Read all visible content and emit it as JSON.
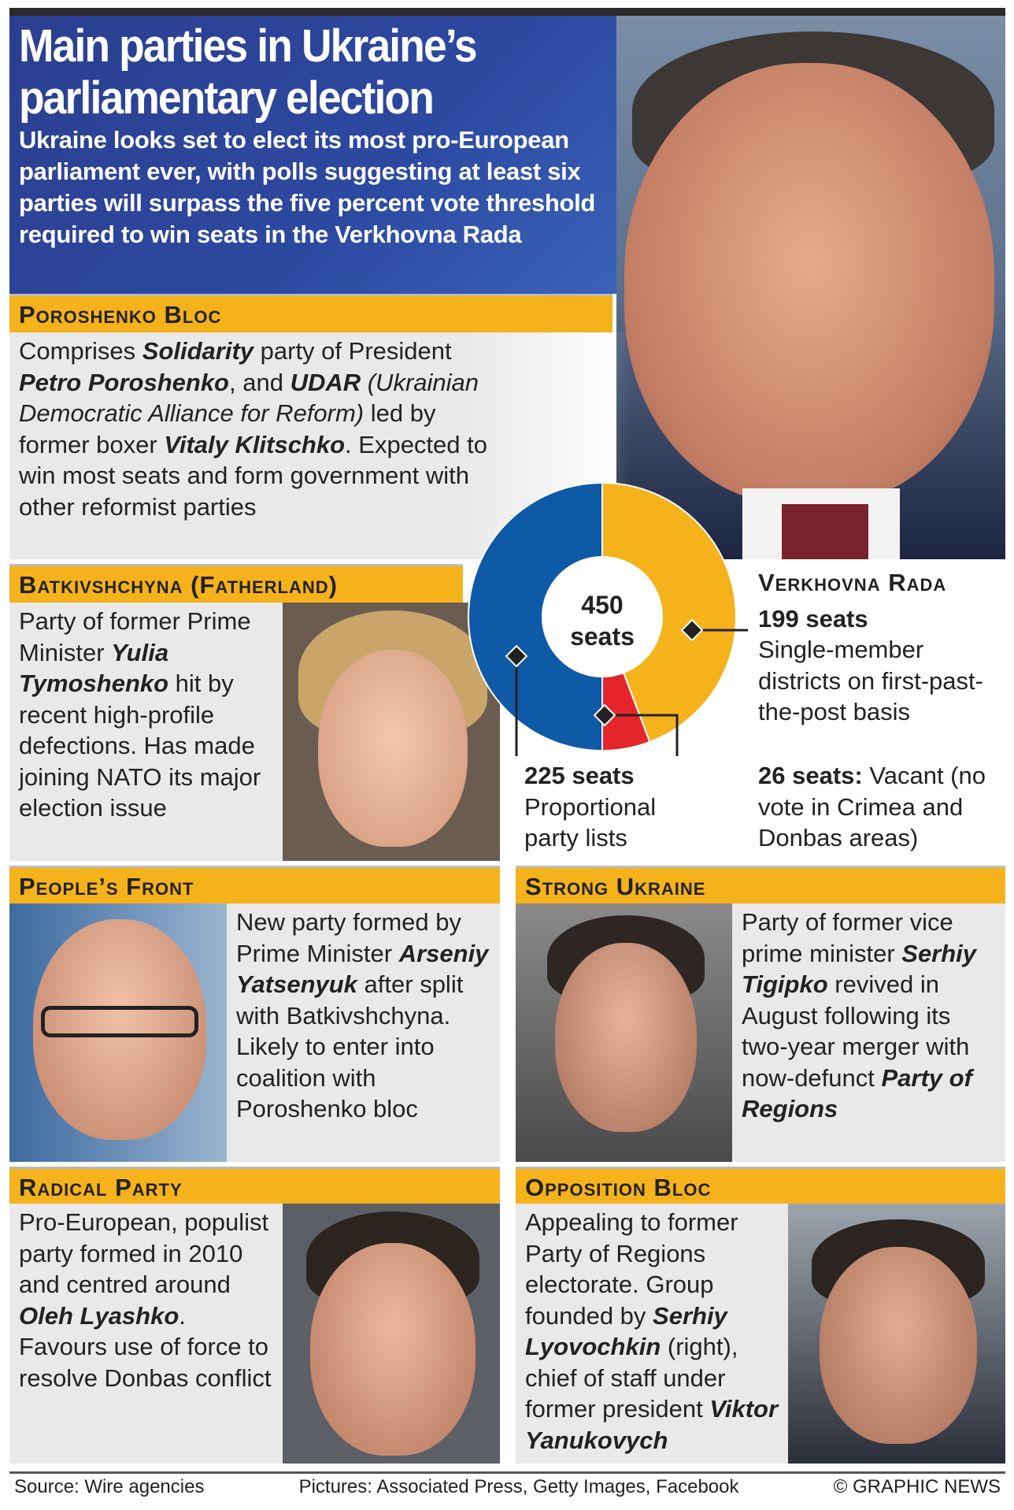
{
  "header": {
    "title_line1": "Main parties in Ukraine’s",
    "title_line2": "parliamentary election",
    "subtitle": [
      {
        "t": "Ukraine looks set to elect its most pro-European parliament ever, with polls suggesting at least six parties will surpass the five percent vote threshold required to win seats in the ",
        "s": ""
      },
      {
        "t": "Verkhovna Rada",
        "s": "i"
      }
    ]
  },
  "parties": {
    "poroshenko": {
      "name": "Poroshenko Bloc",
      "text": [
        {
          "t": "Comprises ",
          "s": ""
        },
        {
          "t": "Solidarity",
          "s": "b"
        },
        {
          "t": " party of President ",
          "s": ""
        },
        {
          "t": "Petro Poroshenko",
          "s": "b"
        },
        {
          "t": ", and ",
          "s": ""
        },
        {
          "t": "UDAR",
          "s": "b"
        },
        {
          "t": " (Ukrainian Democratic Alliance for Reform)",
          "s": "i"
        },
        {
          "t": " led by former boxer ",
          "s": ""
        },
        {
          "t": "Vitaly Klitschko",
          "s": "b"
        },
        {
          "t": ". Expected to win most seats and form government with other reformist parties",
          "s": ""
        }
      ]
    },
    "batkivshchyna": {
      "name": "Batkivshchyna (Fatherland)",
      "text": [
        {
          "t": "Party of former Prime Minister ",
          "s": ""
        },
        {
          "t": "Yulia Tymoshenko",
          "s": "b"
        },
        {
          "t": " hit by recent high-profile defections. Has made joining NATO its major election issue",
          "s": ""
        }
      ]
    },
    "peoples_front": {
      "name": "People’s Front",
      "text": [
        {
          "t": "New party formed by Prime Minister ",
          "s": ""
        },
        {
          "t": "Arseniy Yatsenyuk",
          "s": "b"
        },
        {
          "t": " after split with Batkivshchyna. Likely to enter into coalition with Poroshenko bloc",
          "s": ""
        }
      ]
    },
    "strong_ukraine": {
      "name": "Strong Ukraine",
      "text": [
        {
          "t": "Party of former vice prime minister ",
          "s": ""
        },
        {
          "t": "Serhiy Tigipko",
          "s": "b"
        },
        {
          "t": " revived in August following its two-year merger with now-defunct ",
          "s": ""
        },
        {
          "t": "Party of Regions",
          "s": "b"
        }
      ]
    },
    "radical": {
      "name": "Radical Party",
      "text": [
        {
          "t": "Pro-European, populist party formed in 2010 and centred around ",
          "s": ""
        },
        {
          "t": "Oleh Lyashko",
          "s": "b"
        },
        {
          "t": ". Favours use of force to resolve Donbas conflict",
          "s": ""
        }
      ]
    },
    "opposition": {
      "name": "Opposition Bloc",
      "text": [
        {
          "t": "Appealing to former Party of Regions electorate. Group founded by ",
          "s": ""
        },
        {
          "t": "Serhiy Lyovochkin",
          "s": "b"
        },
        {
          "t": " (right), chief of staff under former president ",
          "s": ""
        },
        {
          "t": "Viktor Yanukovych",
          "s": "b"
        }
      ]
    }
  },
  "chart_data": {
    "type": "pie",
    "title": "Verkhovna Rada",
    "center_label_1": "450",
    "center_label_2": "seats",
    "total": 450,
    "series": [
      {
        "name": "225 seats",
        "values": 225,
        "desc": "Proportional party lists",
        "color": "#0e5aa7"
      },
      {
        "name": "199 seats",
        "values": 199,
        "desc": "Single-member districts on first-past-the-post basis",
        "color": "#f5b21b"
      },
      {
        "name": "26 seats:",
        "values": 26,
        "desc": "Vacant (no vote in Crimea and Donbas areas)",
        "color": "#e4262c"
      }
    ]
  },
  "footer": {
    "source": "Source: Wire agencies",
    "pictures": "Pictures: Associated Press, Getty Images, Facebook",
    "credit": "© GRAPHIC NEWS"
  }
}
